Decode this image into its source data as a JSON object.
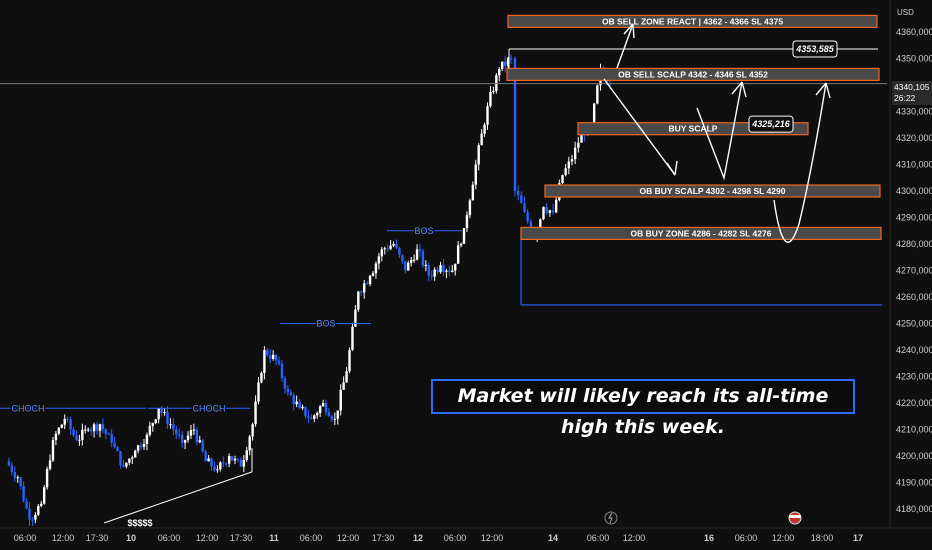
{
  "chart_data": {
    "type": "candlestick",
    "instrument_currency": "USD",
    "y_axis_ticks": [
      "4180,000",
      "4190,000",
      "4200,000",
      "4210,000",
      "4220,000",
      "4230,000",
      "4240,000",
      "4250,000",
      "4260,000",
      "4270,000",
      "4280,000",
      "4290,000",
      "4300,000",
      "4310,000",
      "4320,000",
      "4330,000",
      "4340,000",
      "4350,000",
      "4360,000"
    ],
    "ylim": [
      4175,
      4363
    ],
    "x_axis_ticks": [
      "06:00",
      "12:00",
      "17:30",
      "10",
      "06:00",
      "12:00",
      "17:30",
      "11",
      "06:00",
      "12:00",
      "17:30",
      "12",
      "06:00",
      "12:00",
      "14",
      "06:00",
      "12:00",
      "16",
      "06:00",
      "12:00",
      "18:00",
      "17"
    ],
    "current_price": "4340,105",
    "countdown": "26:22",
    "price_path": [
      4198,
      4192,
      4176,
      4182,
      4206,
      4214,
      4206,
      4210,
      4212,
      4205,
      4196,
      4202,
      4208,
      4218,
      4212,
      4205,
      4210,
      4198,
      4195,
      4200,
      4196,
      4212,
      4240,
      4236,
      4224,
      4218,
      4214,
      4220,
      4214,
      4232,
      4262,
      4268,
      4278,
      4280,
      4270,
      4278,
      4268,
      4272,
      4270,
      4286,
      4310,
      4332,
      4346,
      4350,
      4300,
      4292,
      4282,
      4294,
      4292,
      4306,
      4312,
      4322,
      4324,
      4346,
      4340
    ],
    "zones": [
      {
        "label": "OB SELL ZONE REACT | 4362 - 4366 SL 4375",
        "top": 4366,
        "bottom": 4362
      },
      {
        "label": "OB SELL SCALP 4342 - 4346 SL 4352",
        "top": 4346,
        "bottom": 4342
      },
      {
        "label": "BUY SCALP",
        "top": 4325,
        "bottom": 4322
      },
      {
        "label": "OB BUY SCALP 4302 - 4298 SL 4290",
        "top": 4302,
        "bottom": 4298
      },
      {
        "label": "OB BUY ZONE 4286 - 4282 SL 4276",
        "top": 4286,
        "bottom": 4282
      }
    ],
    "price_labels": [
      "4353,585",
      "4325,216"
    ],
    "annotations": [
      "CHOCH",
      "CHOCH",
      "BOS",
      "BOS",
      "$$$$$"
    ],
    "levels": {
      "high": 4353.585,
      "low_line": 4257,
      "grey_line": 4340.5
    }
  },
  "banner_text": "Market will likely reach its all-time high this week.",
  "colors": {
    "background": "#0f0f0f",
    "bull": "#ffffff",
    "bear": "#2962ff",
    "zone_border": "#f26522",
    "zone_fill": "#4a4a4a",
    "label_blue": "#5a8bff"
  }
}
